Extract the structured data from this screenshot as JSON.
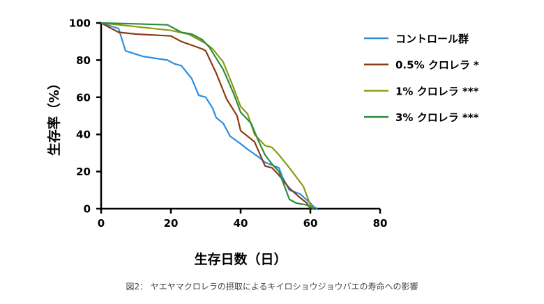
{
  "chart_data": {
    "type": "line",
    "xlabel": "生存日数（日）",
    "ylabel": "生存率（%）",
    "xlim": [
      0,
      80
    ],
    "ylim": [
      0,
      100
    ],
    "xticks": [
      "0",
      "20",
      "40",
      "60",
      "80"
    ],
    "yticks": [
      "0",
      "20",
      "40",
      "60",
      "80",
      "100"
    ],
    "grid": false,
    "legend_position": "top-right",
    "series": [
      {
        "name": "コントロール群",
        "color": "#2a8ee0",
        "points": [
          [
            0,
            100
          ],
          [
            5,
            97
          ],
          [
            7,
            85
          ],
          [
            12,
            82
          ],
          [
            19,
            80
          ],
          [
            21,
            78
          ],
          [
            23,
            77
          ],
          [
            26,
            70
          ],
          [
            28,
            61
          ],
          [
            30,
            60
          ],
          [
            32,
            54
          ],
          [
            33,
            49
          ],
          [
            35,
            46
          ],
          [
            37,
            39
          ],
          [
            40,
            35
          ],
          [
            42,
            32
          ],
          [
            45,
            28
          ],
          [
            47,
            25
          ],
          [
            51,
            22
          ],
          [
            52,
            17
          ],
          [
            54,
            10
          ],
          [
            57,
            8
          ],
          [
            60,
            3
          ],
          [
            61,
            1
          ],
          [
            62,
            0
          ]
        ]
      },
      {
        "name": "0.5% クロレラ *",
        "color": "#8b3a12",
        "points": [
          [
            0,
            100
          ],
          [
            5,
            95
          ],
          [
            10,
            94
          ],
          [
            20,
            93
          ],
          [
            23,
            90
          ],
          [
            26,
            88
          ],
          [
            29,
            86
          ],
          [
            30,
            85
          ],
          [
            33,
            73
          ],
          [
            36,
            59
          ],
          [
            39,
            50
          ],
          [
            40,
            42
          ],
          [
            44,
            36
          ],
          [
            47,
            23
          ],
          [
            49,
            22
          ],
          [
            51,
            18
          ],
          [
            54,
            11
          ],
          [
            57,
            6
          ],
          [
            59,
            3
          ],
          [
            60,
            0
          ]
        ]
      },
      {
        "name": "1% クロレラ ***",
        "color": "#8a9a10",
        "points": [
          [
            0,
            100
          ],
          [
            10,
            98
          ],
          [
            20,
            96
          ],
          [
            25,
            94
          ],
          [
            28,
            91
          ],
          [
            30,
            89
          ],
          [
            32,
            86
          ],
          [
            35,
            79
          ],
          [
            38,
            65
          ],
          [
            40,
            55
          ],
          [
            42,
            51
          ],
          [
            44,
            40
          ],
          [
            47,
            34
          ],
          [
            49,
            33
          ],
          [
            51,
            29
          ],
          [
            54,
            22
          ],
          [
            58,
            12
          ],
          [
            60,
            2
          ],
          [
            61,
            0
          ]
        ]
      },
      {
        "name": "3% クロレラ ***",
        "color": "#2e8a3e",
        "points": [
          [
            0,
            100
          ],
          [
            10,
            99.5
          ],
          [
            19,
            99
          ],
          [
            21,
            97
          ],
          [
            23,
            95
          ],
          [
            26,
            94
          ],
          [
            29,
            91
          ],
          [
            31,
            87
          ],
          [
            33,
            81
          ],
          [
            35,
            75
          ],
          [
            38,
            62
          ],
          [
            40,
            52
          ],
          [
            43,
            46
          ],
          [
            45,
            37
          ],
          [
            47,
            29
          ],
          [
            49,
            24
          ],
          [
            51,
            20
          ],
          [
            54,
            5
          ],
          [
            56,
            3
          ],
          [
            59,
            2
          ],
          [
            61,
            0
          ]
        ]
      }
    ]
  },
  "caption": "図2： ヤエヤマクロレラの摂取によるキイロショウジョウバエの寿命への影響"
}
